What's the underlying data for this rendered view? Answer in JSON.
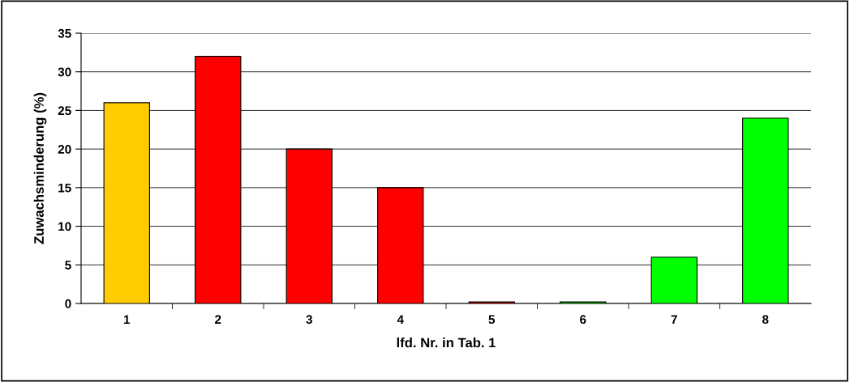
{
  "chart_data": {
    "type": "bar",
    "xlabel": "lfd. Nr. in Tab. 1",
    "ylabel": "Zuwachsminderung (%)",
    "categories": [
      "1",
      "2",
      "3",
      "4",
      "5",
      "6",
      "7",
      "8"
    ],
    "values": [
      26,
      32,
      20,
      15,
      0.2,
      0.2,
      6,
      24
    ],
    "colors": [
      "#ffcc00",
      "#ff0000",
      "#ff0000",
      "#ff0000",
      "#ff0000",
      "#00ff00",
      "#00ff00",
      "#00ff00"
    ],
    "ylim": [
      0,
      35
    ],
    "yticks": [
      0,
      5,
      10,
      15,
      20,
      25,
      30,
      35
    ],
    "grid": "y"
  }
}
